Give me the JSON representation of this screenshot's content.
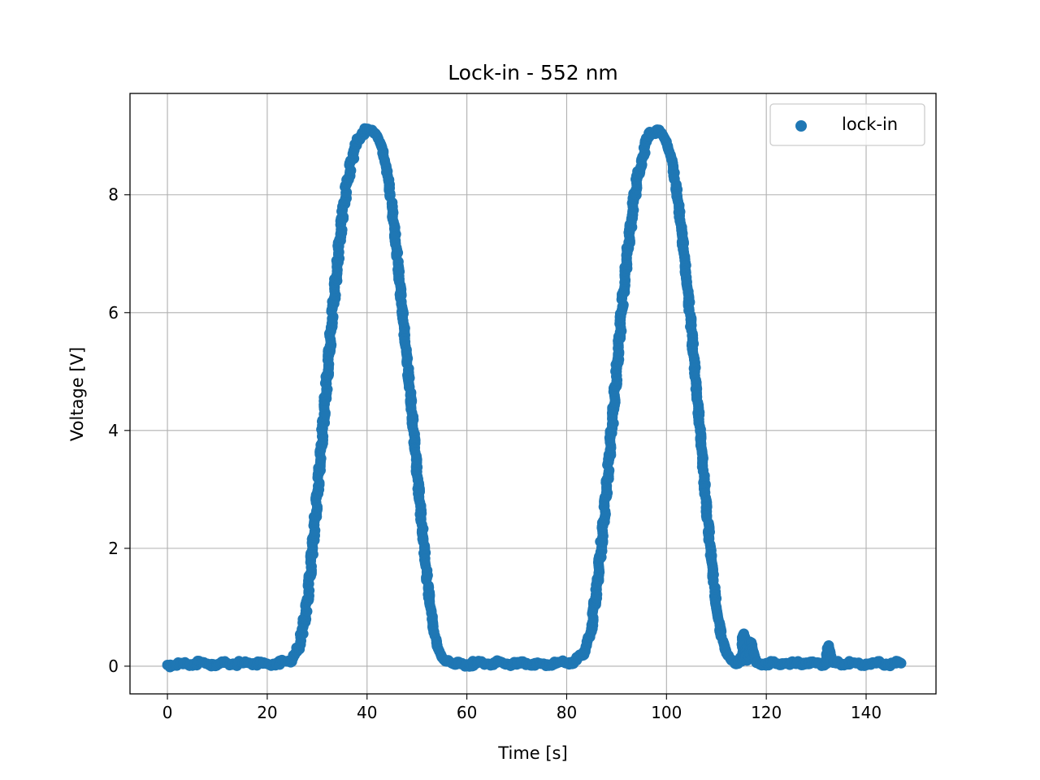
{
  "chart_data": {
    "type": "scatter",
    "title": "Lock-in - 552 nm",
    "xlabel": "Time [s]",
    "ylabel": "Voltage [V]",
    "xlim": [
      -7.5,
      154
    ],
    "ylim": [
      -0.47,
      9.72
    ],
    "xticks": [
      0,
      20,
      40,
      60,
      80,
      100,
      120,
      140
    ],
    "yticks": [
      0,
      2,
      4,
      6,
      8
    ],
    "grid": true,
    "legend": {
      "position": "top-right"
    },
    "series": [
      {
        "name": "lock-in",
        "color": "#1f77b4",
        "x": [
          0,
          2,
          4,
          6,
          8,
          10,
          12,
          14,
          16,
          18,
          20,
          22,
          24,
          25,
          26,
          27,
          28,
          29,
          30,
          31,
          32,
          33,
          34,
          35,
          36,
          37,
          38,
          39,
          40,
          41,
          42,
          43,
          44,
          45,
          46,
          47,
          48,
          49,
          50,
          51,
          52,
          53,
          54,
          55,
          56,
          57,
          58,
          60,
          62,
          64,
          66,
          68,
          70,
          72,
          74,
          76,
          78,
          80,
          82,
          83,
          84,
          85,
          86,
          87,
          88,
          89,
          90,
          91,
          92,
          93,
          94,
          95,
          96,
          97,
          98,
          99,
          100,
          101,
          102,
          103,
          104,
          105,
          106,
          107,
          108,
          109,
          110,
          111,
          112,
          113,
          114,
          115,
          115.5,
          116,
          117,
          118,
          120,
          122,
          124,
          126,
          128,
          130,
          132,
          132.5,
          133,
          134,
          136,
          138,
          140,
          142,
          144,
          146,
          147
        ],
        "y": [
          0.02,
          0.04,
          0.03,
          0.05,
          0.04,
          0.03,
          0.05,
          0.04,
          0.06,
          0.05,
          0.04,
          0.06,
          0.08,
          0.12,
          0.25,
          0.55,
          1.1,
          1.9,
          2.9,
          3.9,
          4.9,
          5.9,
          6.8,
          7.6,
          8.2,
          8.6,
          8.9,
          9.05,
          9.1,
          9.1,
          9.0,
          8.8,
          8.4,
          7.8,
          7.0,
          6.1,
          5.2,
          4.3,
          3.3,
          2.4,
          1.5,
          0.8,
          0.35,
          0.15,
          0.08,
          0.05,
          0.04,
          0.03,
          0.05,
          0.04,
          0.06,
          0.04,
          0.03,
          0.05,
          0.04,
          0.03,
          0.05,
          0.06,
          0.1,
          0.18,
          0.35,
          0.7,
          1.3,
          2.1,
          3.0,
          4.0,
          5.0,
          6.0,
          6.9,
          7.6,
          8.2,
          8.6,
          8.9,
          9.05,
          9.1,
          9.05,
          8.9,
          8.6,
          8.1,
          7.4,
          6.6,
          5.7,
          4.7,
          3.7,
          2.7,
          1.8,
          1.0,
          0.5,
          0.22,
          0.1,
          0.06,
          0.08,
          0.55,
          0.1,
          0.4,
          0.06,
          0.05,
          0.04,
          0.05,
          0.04,
          0.06,
          0.05,
          0.04,
          0.35,
          0.1,
          0.05,
          0.04,
          0.05,
          0.04,
          0.05,
          0.04,
          0.05,
          0.05
        ]
      }
    ]
  }
}
